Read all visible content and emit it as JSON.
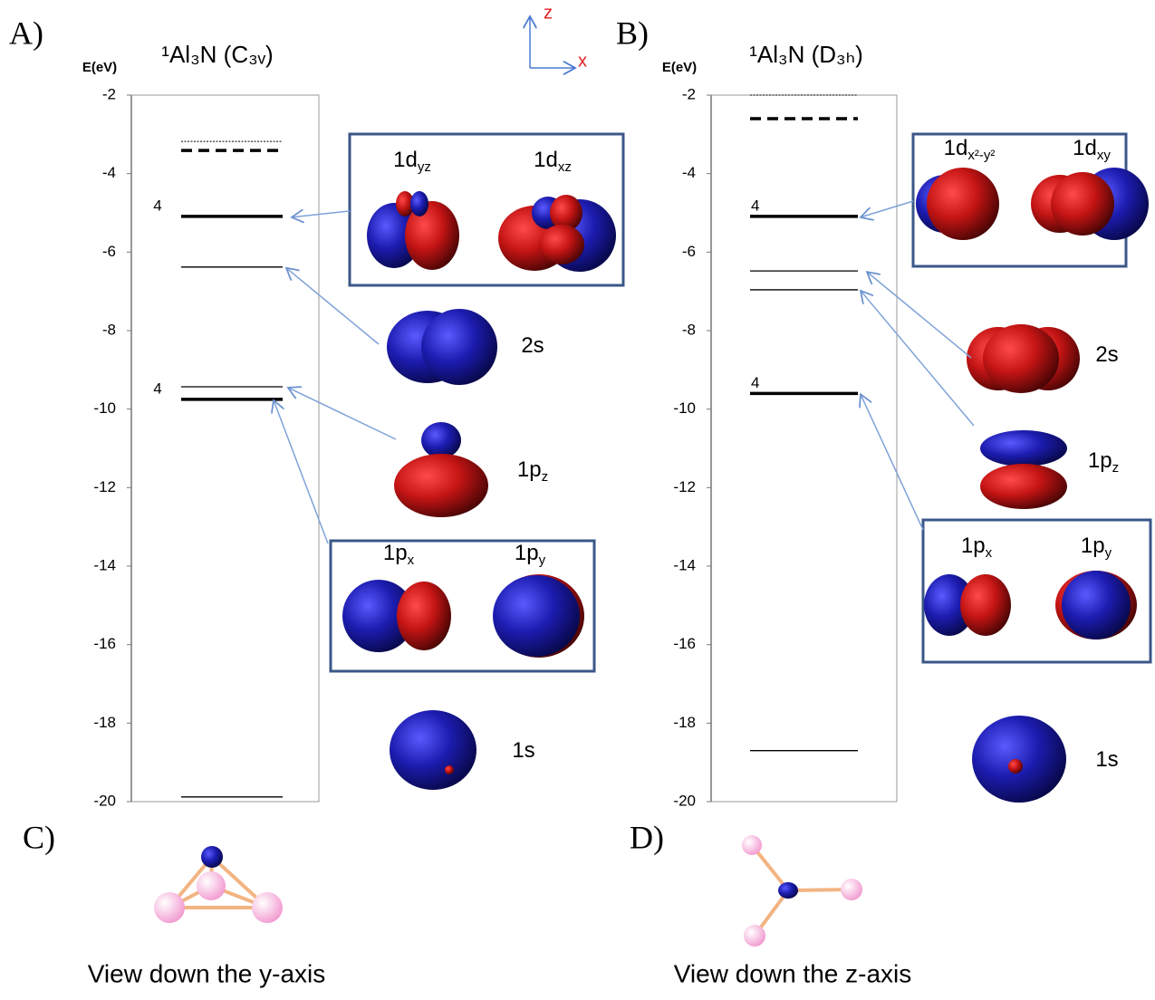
{
  "chart_data": [
    {
      "type": "levels",
      "panel": "A)",
      "title": "¹Al₃N (C₃ᵥ)",
      "ylabel": "E(eV)",
      "ylim": [
        -20,
        -2
      ],
      "yticks": [
        -2,
        -4,
        -6,
        -8,
        -10,
        -12,
        -14,
        -16,
        -18,
        -20
      ],
      "levels": [
        {
          "value": -3.18,
          "style": "dotted"
        },
        {
          "value": -3.41,
          "style": "dashed"
        },
        {
          "value": -5.09,
          "style": "thick",
          "degeneracy": 4
        },
        {
          "value": -6.38,
          "style": "thin"
        },
        {
          "value": -9.43,
          "style": "thin"
        },
        {
          "value": -9.75,
          "style": "thick",
          "degeneracy": 4
        },
        {
          "value": -19.88,
          "style": "thin"
        }
      ],
      "orbitals": [
        [
          {
            "main": "1d",
            "sub": "yz"
          },
          {
            "main": "1d",
            "sub": "xz"
          }
        ],
        [
          {
            "main": "2s"
          }
        ],
        [
          {
            "main": "1p",
            "sub": "z"
          }
        ],
        [
          {
            "main": "1p",
            "sub": "x"
          },
          {
            "main": "1p",
            "sub": "y"
          }
        ],
        [
          {
            "main": "1s"
          }
        ]
      ]
    },
    {
      "type": "levels",
      "panel": "B)",
      "title": "¹Al₃N (D₃ₕ)",
      "ylabel": "E(eV)",
      "ylim": [
        -20,
        -2
      ],
      "yticks": [
        -2,
        -4,
        -6,
        -8,
        -10,
        -12,
        -14,
        -16,
        -18,
        -20
      ],
      "levels": [
        {
          "value": -2.0,
          "style": "dotted"
        },
        {
          "value": -2.6,
          "style": "dashed"
        },
        {
          "value": -5.09,
          "style": "thick",
          "degeneracy": 4
        },
        {
          "value": -6.48,
          "style": "thin"
        },
        {
          "value": -6.96,
          "style": "thin"
        },
        {
          "value": -9.6,
          "style": "thick",
          "degeneracy": 4
        },
        {
          "value": -18.7,
          "style": "thin"
        }
      ],
      "orbitals": [
        [
          {
            "main": "1d",
            "sub": "x²-y²"
          },
          {
            "main": "1d",
            "sub": "xy"
          }
        ],
        [
          {
            "main": "2s"
          }
        ],
        [
          {
            "main": "1p",
            "sub": "z"
          }
        ],
        [
          {
            "main": "1p",
            "sub": "x"
          },
          {
            "main": "1p",
            "sub": "y"
          }
        ],
        [
          {
            "main": "1s"
          }
        ]
      ]
    }
  ],
  "axes_indicator": {
    "z": "z",
    "x": "x"
  },
  "structures": [
    {
      "panel": "C)",
      "caption": "View down the y-axis"
    },
    {
      "panel": "D)",
      "caption": "View down the z-axis"
    }
  ]
}
